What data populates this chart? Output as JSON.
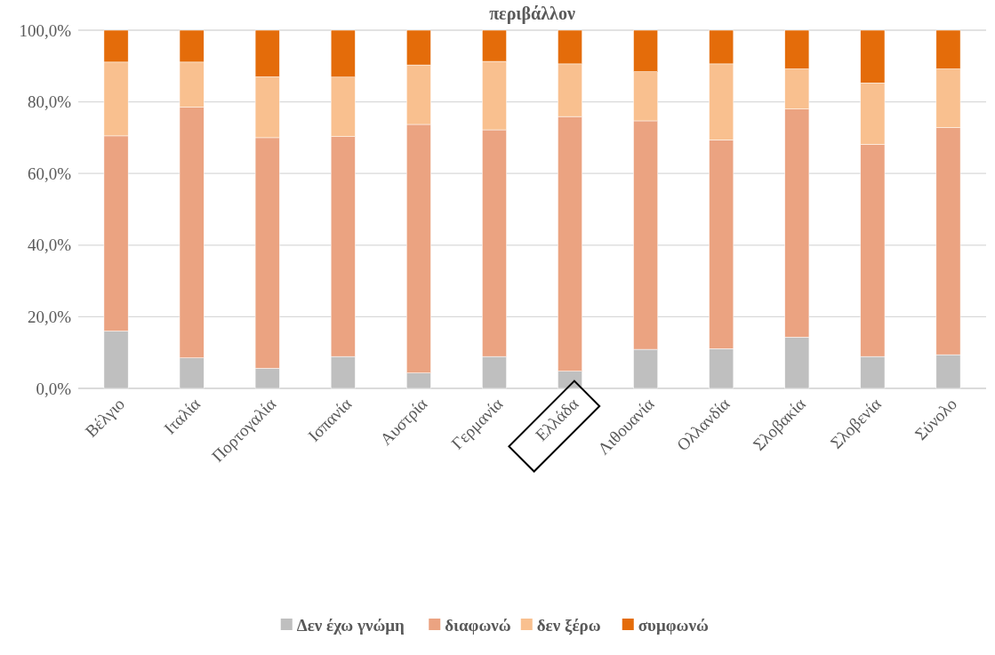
{
  "chart_data": {
    "type": "bar",
    "stacked": true,
    "title": "περιβάλλον",
    "categories": [
      "Βέλγιο",
      "Ιταλία",
      "Πορτογαλία",
      "Ισπανία",
      "Αυστρία",
      "Γερμανία",
      "Ελλάδα",
      "Λιθουανία",
      "Ολλανδία",
      "Σλοβακία",
      "Σλοβενία",
      "Σύνολο"
    ],
    "series": [
      {
        "name": "Δεν έχω γνώμη",
        "color": "#bfbfbf",
        "values": [
          16.0,
          8.5,
          5.6,
          8.9,
          4.3,
          8.9,
          4.8,
          10.9,
          11.1,
          14.3,
          8.9,
          9.4
        ]
      },
      {
        "name": "διαφωνώ",
        "color": "#eba381",
        "values": [
          54.5,
          70.0,
          64.4,
          61.4,
          69.4,
          63.3,
          71.1,
          63.8,
          58.3,
          63.7,
          59.2,
          63.4
        ]
      },
      {
        "name": "δεν ξέρω",
        "color": "#f9c08f",
        "values": [
          20.6,
          12.6,
          17.0,
          16.6,
          16.6,
          19.1,
          14.7,
          13.7,
          21.2,
          11.2,
          17.2,
          16.4
        ]
      },
      {
        "name": "συμφωνώ",
        "color": "#e46c0a",
        "values": [
          8.9,
          8.9,
          13.0,
          13.1,
          9.7,
          8.7,
          9.4,
          11.6,
          9.4,
          10.8,
          14.7,
          10.8
        ]
      }
    ],
    "ylim": [
      0,
      100
    ],
    "yticks": [
      {
        "value": 0,
        "label": "0,0%"
      },
      {
        "value": 20,
        "label": "20,0%"
      },
      {
        "value": 40,
        "label": "40,0%"
      },
      {
        "value": 60,
        "label": "60,0%"
      },
      {
        "value": 80,
        "label": "80,0%"
      },
      {
        "value": 100,
        "label": "100,0%"
      }
    ],
    "grid": "y",
    "legend": "bottom"
  }
}
